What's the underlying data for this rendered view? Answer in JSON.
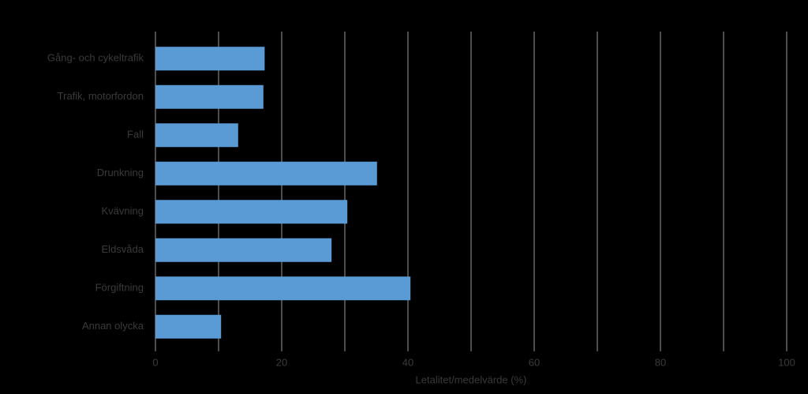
{
  "chart_data": {
    "type": "bar",
    "orientation": "horizontal",
    "categories": [
      "Gång- och cykeltrafik",
      "Trafik, motorfordon",
      "Fall",
      "Drunkning",
      "Kvävning",
      "Eldsvåda",
      "Förgiftning",
      "Annan olycka"
    ],
    "values": [
      17.3,
      17.1,
      13.1,
      35.1,
      30.4,
      27.9,
      40.4,
      10.4
    ],
    "color": "#5b9bd5",
    "x_label": "Letalitet/medelvärde (%)",
    "xlim": [
      0,
      100
    ],
    "xticks": [
      0,
      20,
      40,
      60,
      80,
      100
    ],
    "xgrid": [
      0,
      10,
      20,
      30,
      40,
      50,
      60,
      70,
      80,
      90,
      100
    ],
    "grid": true
  }
}
